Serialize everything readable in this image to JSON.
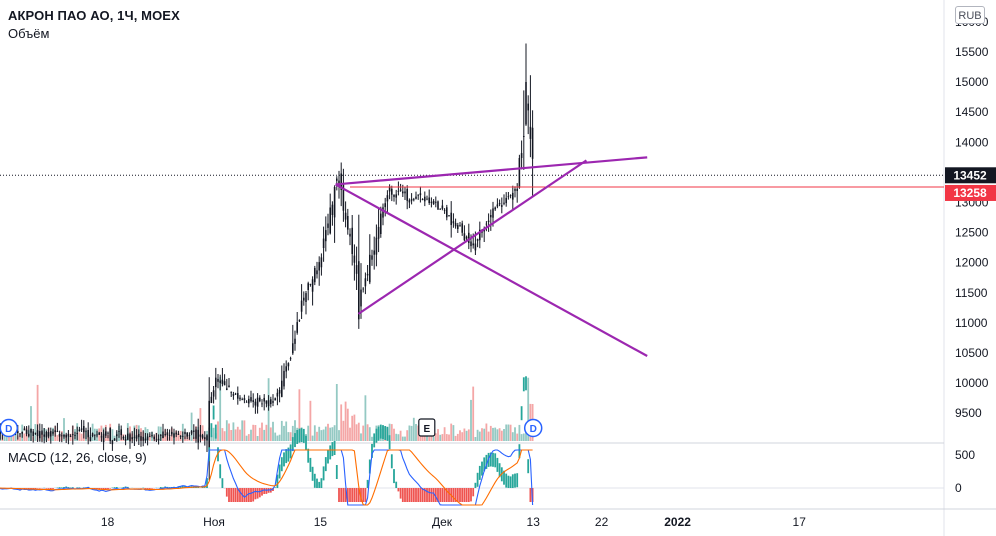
{
  "header": {
    "title": "АКРОН ПАО АО, 1Ч, MOEX",
    "volume_label": "Объём",
    "macd_label": "MACD (12, 26, close, 9)",
    "currency": "RUB"
  },
  "colors": {
    "up": "#131722",
    "down": "#131722",
    "volume_up": "#94c9c3",
    "volume_down": "#f4a6a6",
    "trendline": "#9c27b0",
    "last_price_tag": "#131722",
    "level_line": "#f23645",
    "macd_line": "#2962ff",
    "signal_line": "#ff6d00",
    "hist_pos": "#26a69a",
    "hist_neg": "#ef5350",
    "badge": "#2962ff"
  },
  "chart_data": {
    "type": "candlestick",
    "timeframe": "1Ч",
    "x_ticks": [
      "18",
      "Ноя",
      "15",
      "Дек",
      "13",
      "22",
      "2022",
      "17"
    ],
    "y_ticks": [
      9500,
      10000,
      10500,
      11000,
      11500,
      12000,
      12500,
      13000,
      13500,
      14000,
      14500,
      15000,
      15500,
      16000
    ],
    "y_range": [
      9000,
      16100
    ],
    "last_price": "13452",
    "level_price": "13258",
    "trendlines": [
      {
        "from_date": "Nov 17",
        "from_price": 13300,
        "to_date": "Dec 28",
        "to_price": 13750
      },
      {
        "from_date": "Nov 17",
        "from_price": 13300,
        "to_date": "Dec 28",
        "to_price": 10450
      },
      {
        "from_date": "Nov 20",
        "from_price": 11150,
        "to_date": "Dec 20",
        "to_price": 13700
      }
    ],
    "price_path": [
      {
        "date": "Oct 3",
        "price": 9200
      },
      {
        "date": "Oct 13",
        "price": 9150
      },
      {
        "date": "Oct 23",
        "price": 9100
      },
      {
        "date": "Oct 31",
        "price": 9150
      },
      {
        "date": "Nov 1",
        "price": 10050
      },
      {
        "date": "Nov 5",
        "price": 9700
      },
      {
        "date": "Nov 9",
        "price": 9700
      },
      {
        "date": "Nov 11",
        "price": 10400
      },
      {
        "date": "Nov 13",
        "price": 11500
      },
      {
        "date": "Nov 15",
        "price": 12000
      },
      {
        "date": "Nov 17",
        "price": 13400
      },
      {
        "date": "Nov 19",
        "price": 12400
      },
      {
        "date": "Nov 20",
        "price": 11200
      },
      {
        "date": "Nov 22",
        "price": 12300
      },
      {
        "date": "Nov 24",
        "price": 13200
      },
      {
        "date": "Nov 27",
        "price": 13100
      },
      {
        "date": "Nov 30",
        "price": 13000
      },
      {
        "date": "Dec 3",
        "price": 12600
      },
      {
        "date": "Dec 5",
        "price": 12300
      },
      {
        "date": "Dec 8",
        "price": 12900
      },
      {
        "date": "Dec 10",
        "price": 13100
      },
      {
        "date": "Dec 11",
        "price": 13300
      },
      {
        "date": "Dec 12",
        "price": 14700
      },
      {
        "date": "Dec 13",
        "price": 13452
      }
    ],
    "macd_ticks": [
      500,
      0
    ],
    "events": [
      {
        "label": "D",
        "date": "Oct 5"
      },
      {
        "label": "E",
        "date": "Nov 29"
      },
      {
        "label": "D",
        "date": "Dec 13"
      }
    ]
  }
}
